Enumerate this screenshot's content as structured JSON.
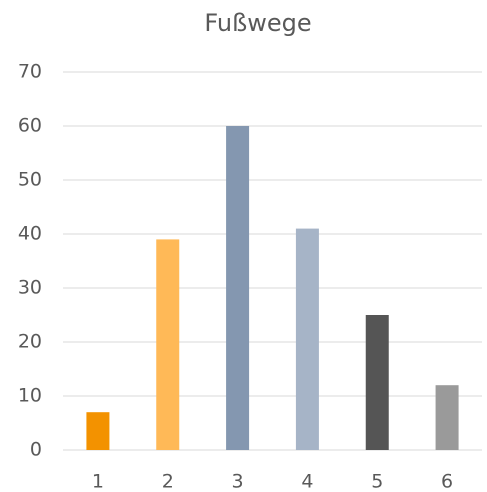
{
  "chart_data": {
    "type": "bar",
    "title": "Fußwege",
    "categories": [
      "1",
      "2",
      "3",
      "4",
      "5",
      "6"
    ],
    "values": [
      7,
      39,
      60,
      41,
      25,
      12
    ],
    "colors": [
      "#f39200",
      "#ffb957",
      "#8497b0",
      "#a6b4c7",
      "#555555",
      "#9a9a9a"
    ],
    "ylim": [
      0,
      70
    ],
    "yticks": [
      0,
      10,
      20,
      30,
      40,
      50,
      60,
      70
    ],
    "grid": true
  }
}
